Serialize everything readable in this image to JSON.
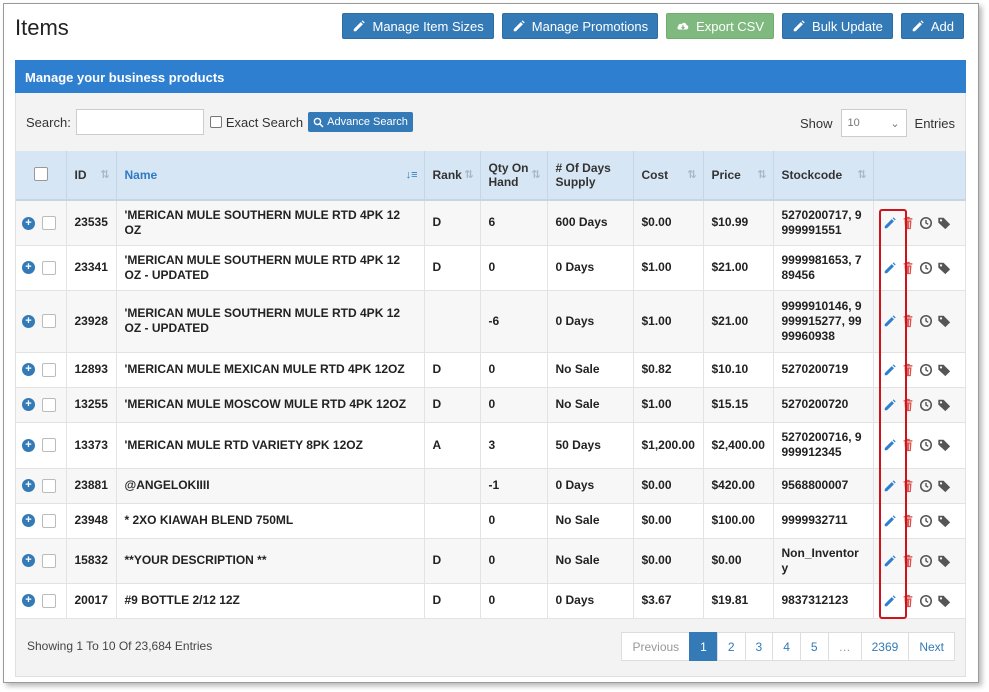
{
  "page": {
    "title": "Items"
  },
  "toolbar": {
    "manage_sizes": "Manage Item Sizes",
    "manage_promotions": "Manage Promotions",
    "export_csv": "Export CSV",
    "bulk_update": "Bulk Update",
    "add": "Add"
  },
  "panel": {
    "heading": "Manage your business products"
  },
  "search": {
    "label": "Search:",
    "value": "",
    "exact_label": "Exact Search",
    "advance_label": "Advance Search"
  },
  "show": {
    "label": "Show",
    "value": "10",
    "suffix": "Entries"
  },
  "columns": {
    "id": "ID",
    "name": "Name",
    "rank": "Rank",
    "qty_line1": "Qty On",
    "qty_line2": "Hand",
    "days_line1": "# Of Days",
    "days_line2": "Supply",
    "cost": "Cost",
    "price": "Price",
    "stockcode": "Stockcode"
  },
  "rows": [
    {
      "id": "23535",
      "name_l1": "'MERICAN MULE SOUTHERN MULE RTD 4PK 12",
      "name_l2": "OZ",
      "rank": "D",
      "qty": "6",
      "days": "600 Days",
      "cost": "$0.00",
      "price": "$10.99",
      "stock_l1": "5270200717, 9",
      "stock_l2": "999991551",
      "stock_l3": ""
    },
    {
      "id": "23341",
      "name_l1": "'MERICAN MULE SOUTHERN MULE RTD 4PK 12",
      "name_l2": "OZ - UPDATED",
      "rank": "D",
      "qty": "0",
      "days": "0 Days",
      "cost": "$1.00",
      "price": "$21.00",
      "stock_l1": "9999981653, 7",
      "stock_l2": "89456",
      "stock_l3": ""
    },
    {
      "id": "23928",
      "name_l1": "'MERICAN MULE SOUTHERN MULE RTD 4PK 12",
      "name_l2": "OZ - UPDATED",
      "rank": "",
      "qty": "-6",
      "days": "0 Days",
      "cost": "$1.00",
      "price": "$21.00",
      "stock_l1": "9999910146, 9",
      "stock_l2": "999915277, 99",
      "stock_l3": "99960938"
    },
    {
      "id": "12893",
      "name_l1": "'MERICAN MULE MEXICAN MULE RTD 4PK 12OZ",
      "name_l2": "",
      "rank": "D",
      "qty": "0",
      "days": "No Sale",
      "cost": "$0.82",
      "price": "$10.10",
      "stock_l1": "5270200719",
      "stock_l2": "",
      "stock_l3": ""
    },
    {
      "id": "13255",
      "name_l1": "'MERICAN MULE MOSCOW MULE RTD 4PK 12OZ",
      "name_l2": "",
      "rank": "D",
      "qty": "0",
      "days": "No Sale",
      "cost": "$1.00",
      "price": "$15.15",
      "stock_l1": "5270200720",
      "stock_l2": "",
      "stock_l3": ""
    },
    {
      "id": "13373",
      "name_l1": "'MERICAN MULE RTD VARIETY 8PK 12OZ",
      "name_l2": "",
      "rank": "A",
      "qty": "3",
      "days": "50 Days",
      "cost": "$1,200.00",
      "price": "$2,400.00",
      "stock_l1": "5270200716, 9",
      "stock_l2": "999912345",
      "stock_l3": ""
    },
    {
      "id": "23881",
      "name_l1": "@ANGELOKIIII",
      "name_l2": "",
      "rank": "",
      "qty": "-1",
      "days": "0 Days",
      "cost": "$0.00",
      "price": "$420.00",
      "stock_l1": "9568800007",
      "stock_l2": "",
      "stock_l3": ""
    },
    {
      "id": "23948",
      "name_l1": "* 2XO KIAWAH BLEND 750ML",
      "name_l2": "",
      "rank": "",
      "qty": "0",
      "days": "No Sale",
      "cost": "$0.00",
      "price": "$100.00",
      "stock_l1": "9999932711",
      "stock_l2": "",
      "stock_l3": ""
    },
    {
      "id": "15832",
      "name_l1": "**YOUR DESCRIPTION **",
      "name_l2": "",
      "rank": "D",
      "qty": "0",
      "days": "No Sale",
      "cost": "$0.00",
      "price": "$0.00",
      "stock_l1": "Non_Inventor",
      "stock_l2": "y",
      "stock_l3": ""
    },
    {
      "id": "20017",
      "name_l1": "#9 BOTTLE 2/12 12Z",
      "name_l2": "",
      "rank": "D",
      "qty": "0",
      "days": "0 Days",
      "cost": "$3.67",
      "price": "$19.81",
      "stock_l1": "9837312123",
      "stock_l2": "",
      "stock_l3": ""
    }
  ],
  "footer": {
    "info": "Showing 1 To 10 Of 23,684 Entries"
  },
  "pagination": {
    "previous": "Previous",
    "p1": "1",
    "p2": "2",
    "p3": "3",
    "p4": "4",
    "p5": "5",
    "ellipsis": "…",
    "last": "2369",
    "next": "Next"
  },
  "icons": {
    "edit": "pencil-icon",
    "delete": "trash-icon",
    "history": "clock-icon",
    "tag": "tag-icon",
    "expand": "plus-circle-icon"
  },
  "colors": {
    "primary": "#337ab7",
    "header_bar": "#2f7fd1",
    "export_button": "#7fb97f",
    "delete_icon": "#d9534f",
    "highlight": "#d0131a"
  }
}
